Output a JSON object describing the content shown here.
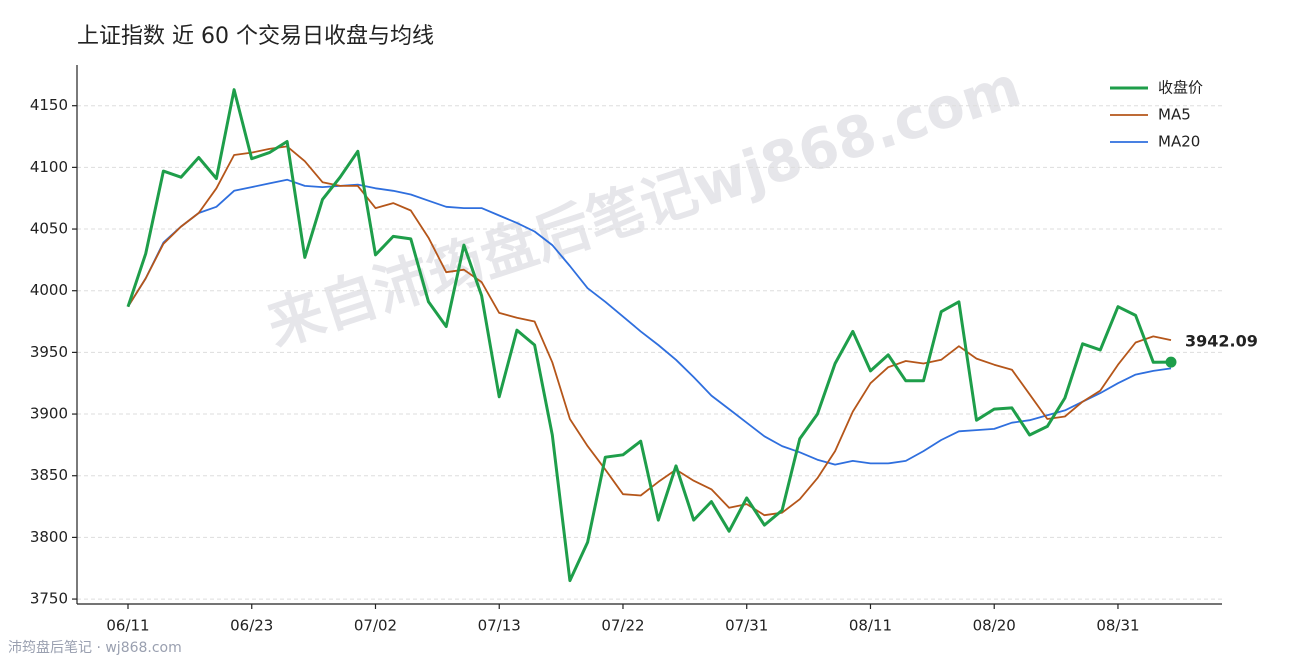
{
  "chart_data": {
    "type": "line",
    "title": "上证指数 近 60 个交易日收盘与均线",
    "watermark": "来自沛筠盘后笔记wj868.com",
    "source": "沛筠盘后笔记 · wj868.com",
    "categories": [
      "06/11",
      null,
      null,
      null,
      null,
      null,
      null,
      "06/23",
      null,
      null,
      null,
      null,
      null,
      null,
      "07/02",
      null,
      null,
      null,
      null,
      null,
      null,
      "07/13",
      null,
      null,
      null,
      null,
      null,
      null,
      "07/22",
      null,
      null,
      null,
      null,
      null,
      null,
      "07/31",
      null,
      null,
      null,
      null,
      null,
      null,
      "08/11",
      null,
      null,
      null,
      null,
      null,
      null,
      "08/20",
      null,
      null,
      null,
      null,
      null,
      null,
      "08/31",
      null,
      null,
      null
    ],
    "series": [
      {
        "name": "收盘价",
        "color": "#1e9e4a",
        "values": [
          3987,
          4030,
          4097,
          4092,
          4108,
          4091,
          4163,
          4107,
          4112,
          4121,
          4027,
          4074,
          4092,
          4113,
          4029,
          4044,
          4042,
          3991,
          3971,
          4037,
          3996,
          3914,
          3968,
          3956,
          3883,
          3765,
          3796,
          3865,
          3867,
          3878,
          3814,
          3858,
          3814,
          3829,
          3805,
          3832,
          3810,
          3822,
          3880,
          3900,
          3941,
          3967,
          3935,
          3948,
          3927,
          3927,
          3983,
          3991,
          3895,
          3904,
          3905,
          3883,
          3890,
          3913,
          3957,
          3952,
          3987,
          3980,
          3942,
          3942.09
        ],
        "value_labels": [
          null,
          null,
          null,
          null,
          null,
          null,
          null,
          null,
          null,
          null,
          null,
          null,
          null,
          null,
          null,
          null,
          null,
          null,
          null,
          null,
          null,
          null,
          null,
          null,
          null,
          null,
          null,
          null,
          null,
          null,
          null,
          null,
          null,
          null,
          null,
          null,
          null,
          null,
          null,
          null,
          null,
          null,
          null,
          null,
          null,
          null,
          null,
          null,
          null,
          null,
          null,
          null,
          null,
          null,
          null,
          null,
          null,
          null,
          null,
          "3942.09"
        ]
      },
      {
        "name": "MA5",
        "color": "#b5561a",
        "values": [
          3987,
          4010,
          4038,
          4052,
          4063,
          4083,
          4110,
          4112,
          4115,
          4117,
          4105,
          4088,
          4085,
          4085,
          4067,
          4071,
          4065,
          4043,
          4015,
          4017,
          4007,
          3982,
          3978,
          3975,
          3942,
          3896,
          3874,
          3855,
          3835,
          3834,
          3845,
          3855,
          3846,
          3839,
          3824,
          3827,
          3818,
          3820,
          3831,
          3848,
          3870,
          3902,
          3925,
          3938,
          3943,
          3941,
          3944,
          3955,
          3945,
          3940,
          3936,
          3916,
          3896,
          3898,
          3910,
          3919,
          3940,
          3958,
          3963,
          3960
        ]
      },
      {
        "name": "MA20",
        "color": "#2f6fde",
        "values": [
          3987,
          4010,
          4039,
          4052,
          4063,
          4068,
          4081,
          4084,
          4087,
          4090,
          4085,
          4084,
          4085,
          4086,
          4083,
          4081,
          4078,
          4073,
          4068,
          4067,
          4067,
          4061,
          4055,
          4048,
          4037,
          4020,
          4002,
          3991,
          3979,
          3967,
          3956,
          3944,
          3930,
          3915,
          3904,
          3893,
          3882,
          3874,
          3869,
          3863,
          3859,
          3862,
          3860,
          3860,
          3862,
          3870,
          3879,
          3886,
          3887,
          3888,
          3893,
          3895,
          3899,
          3903,
          3910,
          3917,
          3925,
          3932,
          3935,
          3937
        ]
      }
    ],
    "ylim": [
      3746,
      4183
    ],
    "yticks": [
      3750,
      3800,
      3850,
      3900,
      3950,
      4000,
      4050,
      4100,
      4150
    ],
    "grid": true,
    "legend": "upper right"
  }
}
